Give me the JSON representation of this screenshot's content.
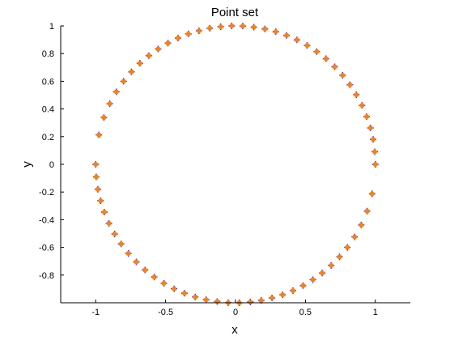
{
  "chart_data": {
    "type": "scatter",
    "title": "Point set",
    "xlabel": "x",
    "ylabel": "y",
    "xlim": [
      -1.25,
      1.25
    ],
    "ylim": [
      -1,
      1
    ],
    "xticks": [
      -1,
      -0.5,
      0,
      0.5,
      1
    ],
    "xtick_labels": [
      "-1",
      "-0.5",
      "0",
      "0.5",
      "1"
    ],
    "yticks": [
      -0.8,
      -0.6,
      -0.4,
      -0.2,
      0,
      0.2,
      0.4,
      0.6,
      0.8,
      1
    ],
    "ytick_labels": [
      "-0.8",
      "-0.6",
      "-0.4",
      "-0.2",
      "0",
      "0.2",
      "0.4",
      "0.6",
      "0.8",
      "1"
    ],
    "grid": false,
    "series": [
      {
        "marker": "plus",
        "color": "#3b2bd6",
        "x": [
          1,
          0.996,
          0.984,
          0.965,
          0.938,
          0.905,
          0.864,
          0.818,
          0.766,
          0.709,
          0.647,
          0.581,
          0.512,
          0.439,
          0.365,
          0.288,
          0.21,
          0.131,
          0.052,
          -0.027,
          -0.106,
          -0.184,
          -0.261,
          -0.337,
          -0.411,
          -0.483,
          -0.553,
          -0.62,
          -0.684,
          -0.744,
          -0.8,
          -0.852,
          -0.899,
          -0.941,
          -0.977,
          -1,
          -0.996,
          -0.984,
          -0.965,
          -0.938,
          -0.905,
          -0.864,
          -0.818,
          -0.766,
          -0.709,
          -0.647,
          -0.581,
          -0.512,
          -0.439,
          -0.365,
          -0.288,
          -0.21,
          -0.131,
          -0.052,
          0.027,
          0.106,
          0.184,
          0.261,
          0.337,
          0.411,
          0.483,
          0.553,
          0.62,
          0.684,
          0.744,
          0.8,
          0.852,
          0.899,
          0.941,
          0.977
        ],
        "y": [
          0,
          0.091,
          0.18,
          0.263,
          0.345,
          0.426,
          0.503,
          0.575,
          0.643,
          0.705,
          0.763,
          0.814,
          0.859,
          0.899,
          0.931,
          0.958,
          0.978,
          0.991,
          0.999,
          1,
          0.994,
          0.983,
          0.965,
          0.942,
          0.912,
          0.876,
          0.833,
          0.785,
          0.73,
          0.668,
          0.6,
          0.524,
          0.438,
          0.338,
          0.213,
          0,
          -0.091,
          -0.18,
          -0.263,
          -0.345,
          -0.426,
          -0.503,
          -0.575,
          -0.643,
          -0.705,
          -0.763,
          -0.814,
          -0.859,
          -0.899,
          -0.931,
          -0.958,
          -0.978,
          -0.991,
          -0.999,
          -1,
          -0.994,
          -0.983,
          -0.965,
          -0.942,
          -0.912,
          -0.876,
          -0.833,
          -0.785,
          -0.73,
          -0.668,
          -0.6,
          -0.524,
          -0.438,
          -0.338,
          -0.213
        ]
      },
      {
        "marker": "dot",
        "color": "#ff7f0e",
        "x": [
          1,
          0.996,
          0.984,
          0.965,
          0.938,
          0.905,
          0.864,
          0.818,
          0.766,
          0.709,
          0.647,
          0.581,
          0.512,
          0.439,
          0.365,
          0.288,
          0.21,
          0.131,
          0.052,
          -0.027,
          -0.106,
          -0.184,
          -0.261,
          -0.337,
          -0.411,
          -0.483,
          -0.553,
          -0.62,
          -0.684,
          -0.744,
          -0.8,
          -0.852,
          -0.899,
          -0.941,
          -0.977,
          -1,
          -0.996,
          -0.984,
          -0.965,
          -0.938,
          -0.905,
          -0.864,
          -0.818,
          -0.766,
          -0.709,
          -0.647,
          -0.581,
          -0.512,
          -0.439,
          -0.365,
          -0.288,
          -0.21,
          -0.131,
          -0.052,
          0.027,
          0.106,
          0.184,
          0.261,
          0.337,
          0.411,
          0.483,
          0.553,
          0.62,
          0.684,
          0.744,
          0.8,
          0.852,
          0.899,
          0.941,
          0.977
        ],
        "y": [
          0,
          0.091,
          0.18,
          0.263,
          0.345,
          0.426,
          0.503,
          0.575,
          0.643,
          0.705,
          0.763,
          0.814,
          0.859,
          0.899,
          0.931,
          0.958,
          0.978,
          0.991,
          0.999,
          1,
          0.994,
          0.983,
          0.965,
          0.942,
          0.912,
          0.876,
          0.833,
          0.785,
          0.73,
          0.668,
          0.6,
          0.524,
          0.438,
          0.338,
          0.213,
          0,
          -0.091,
          -0.18,
          -0.263,
          -0.345,
          -0.426,
          -0.503,
          -0.575,
          -0.643,
          -0.705,
          -0.763,
          -0.814,
          -0.859,
          -0.899,
          -0.931,
          -0.958,
          -0.978,
          -0.991,
          -0.999,
          -1,
          -0.994,
          -0.983,
          -0.965,
          -0.942,
          -0.912,
          -0.876,
          -0.833,
          -0.785,
          -0.73,
          -0.668,
          -0.6,
          -0.524,
          -0.438,
          -0.338,
          -0.213
        ]
      }
    ]
  }
}
